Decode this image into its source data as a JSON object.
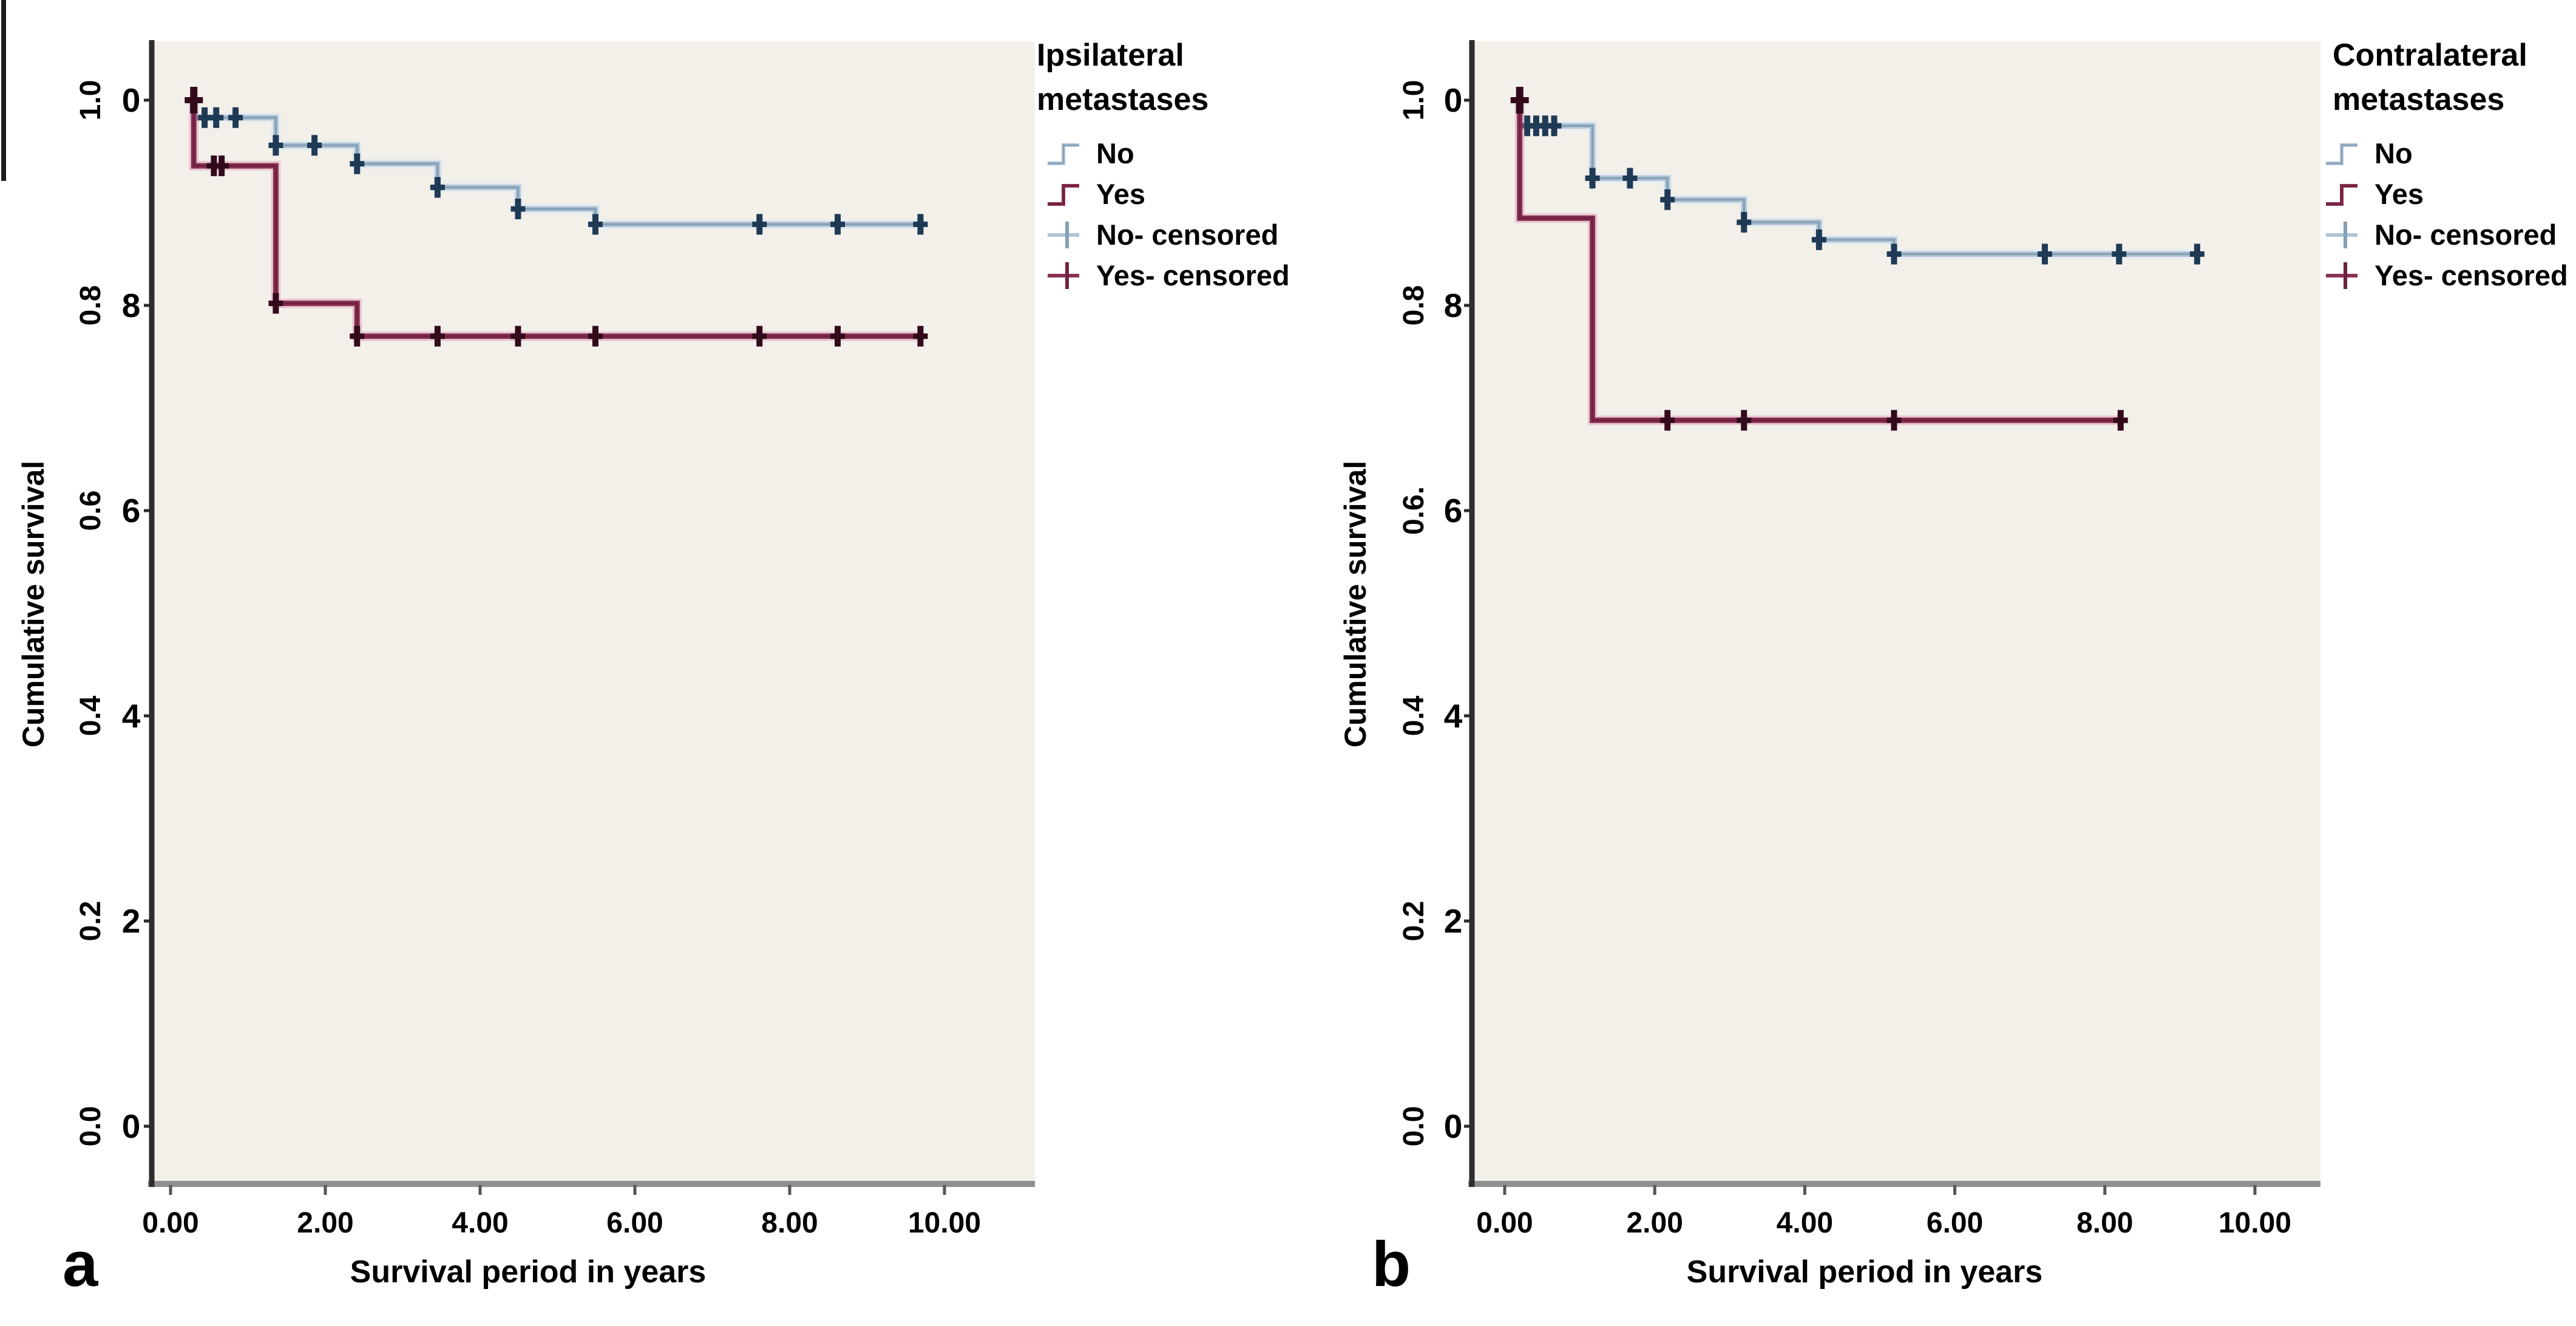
{
  "figure_background": "#ffffff",
  "plot_background": "#f3f0ea",
  "axis_color": "#2d2d2d",
  "baseline_color": "#8f8f8f",
  "chart_data": [
    {
      "type": "line",
      "subtype": "kaplan-meier-step",
      "panel_label": "a",
      "legend_title": [
        "Ipsilateral",
        "metastases"
      ],
      "xlabel": "Survival period in years",
      "ylabel": "Cumulative survival",
      "xticks": [
        "0.00",
        "2.00",
        "4.00",
        "6.00",
        "8.00",
        "10.00"
      ],
      "xtick_values": [
        0,
        2,
        4,
        6,
        8,
        10
      ],
      "yticks_rotated": [
        "1.0",
        "0.8",
        "0.6",
        "0.4",
        "0.2",
        "0.0"
      ],
      "yticks_digits": [
        "0",
        "8",
        "6",
        "4",
        "2",
        "0"
      ],
      "ytick_values": [
        1.0,
        0.8,
        0.6,
        0.4,
        0.2,
        0.0
      ],
      "xlim": [
        0,
        11.2
      ],
      "ylim": [
        0,
        1.0
      ],
      "grid": false,
      "legend_position": "right",
      "legend_items": [
        {
          "label": "No",
          "symbol": "step",
          "series": 0
        },
        {
          "label": "Yes",
          "symbol": "step",
          "series": 1
        },
        {
          "label": "No- censored",
          "symbol": "censor",
          "series": 0
        },
        {
          "label": "Yes- censored",
          "symbol": "censor",
          "series": 1
        }
      ],
      "series": [
        {
          "name": "No",
          "line_color": "#b0c4d4",
          "core_color": "#85a0b6",
          "marker_color": "#1f3a55",
          "glow_color": "rgba(220,232,242,0.6)",
          "steps": [
            [
              0.3,
              1.0
            ],
            [
              0.3,
              0.983
            ],
            [
              1.36,
              0.956
            ],
            [
              2.41,
              0.938
            ],
            [
              3.45,
              0.915
            ],
            [
              4.49,
              0.894
            ],
            [
              5.49,
              0.879
            ]
          ],
          "end_x": 9.69,
          "censored": [
            [
              0.44,
              0.983
            ],
            [
              0.59,
              0.983
            ],
            [
              0.84,
              0.983
            ],
            [
              1.36,
              0.956
            ],
            [
              1.86,
              0.956
            ],
            [
              2.41,
              0.938
            ],
            [
              3.45,
              0.915
            ],
            [
              4.49,
              0.894
            ],
            [
              5.49,
              0.879
            ],
            [
              7.61,
              0.879
            ],
            [
              8.62,
              0.879
            ],
            [
              9.69,
              0.879
            ]
          ]
        },
        {
          "name": "Yes",
          "line_color": "#8a3053",
          "core_color": "#6f2240",
          "marker_color": "#330a1c",
          "glow_color": "rgba(214,130,165,0.35)",
          "steps": [
            [
              0.3,
              1.0
            ],
            [
              0.3,
              0.936
            ],
            [
              1.36,
              0.802
            ],
            [
              2.41,
              0.77
            ]
          ],
          "end_x": 9.69,
          "censored": [
            [
              0.3,
              1.0
            ],
            [
              0.56,
              0.936
            ],
            [
              0.66,
              0.936
            ],
            [
              1.36,
              0.802
            ],
            [
              2.41,
              0.77
            ],
            [
              3.45,
              0.77
            ],
            [
              4.49,
              0.77
            ],
            [
              5.49,
              0.77
            ],
            [
              7.61,
              0.77
            ],
            [
              8.62,
              0.77
            ],
            [
              9.69,
              0.77
            ]
          ]
        }
      ]
    },
    {
      "type": "line",
      "subtype": "kaplan-meier-step",
      "panel_label": "b",
      "legend_title": [
        "Contralateral",
        "metastases"
      ],
      "xlabel": "Survival period in years",
      "ylabel": "Cumulative survival",
      "xticks": [
        "0.00",
        "2.00",
        "4.00",
        "6.00",
        "8.00",
        "10.00"
      ],
      "xtick_values": [
        0,
        2,
        4,
        6,
        8,
        10
      ],
      "yticks_rotated": [
        "1.0",
        "0.8",
        "0.6.",
        "0.4",
        "0.2",
        "0.0"
      ],
      "yticks_digits": [
        "0",
        "8",
        "6",
        "4",
        "2",
        "0"
      ],
      "ytick_values": [
        1.0,
        0.8,
        0.6,
        0.4,
        0.2,
        0.0
      ],
      "xlim": [
        0,
        11.2
      ],
      "ylim": [
        0,
        1.0
      ],
      "grid": false,
      "legend_position": "right",
      "legend_items": [
        {
          "label": "No",
          "symbol": "step",
          "series": 0
        },
        {
          "label": "Yes",
          "symbol": "step",
          "series": 1
        },
        {
          "label": "No- censored",
          "symbol": "censor",
          "series": 0
        },
        {
          "label": "Yes- censored",
          "symbol": "censor",
          "series": 1
        }
      ],
      "series": [
        {
          "name": "No",
          "line_color": "#b0c4d4",
          "core_color": "#85a0b6",
          "marker_color": "#1f3a55",
          "glow_color": "rgba(220,232,242,0.6)",
          "steps": [
            [
              0.2,
              1.0
            ],
            [
              0.2,
              0.975
            ],
            [
              1.17,
              0.924
            ],
            [
              2.17,
              0.903
            ],
            [
              3.19,
              0.881
            ],
            [
              4.19,
              0.864
            ],
            [
              5.19,
              0.85
            ]
          ],
          "end_x": 9.23,
          "censored": [
            [
              0.3,
              0.975
            ],
            [
              0.42,
              0.975
            ],
            [
              0.54,
              0.975
            ],
            [
              0.66,
              0.975
            ],
            [
              1.17,
              0.924
            ],
            [
              1.67,
              0.924
            ],
            [
              2.17,
              0.903
            ],
            [
              3.19,
              0.881
            ],
            [
              4.19,
              0.864
            ],
            [
              5.19,
              0.85
            ],
            [
              7.2,
              0.85
            ],
            [
              8.19,
              0.85
            ],
            [
              9.23,
              0.85
            ]
          ]
        },
        {
          "name": "Yes",
          "line_color": "#8a3053",
          "core_color": "#6f2240",
          "marker_color": "#330a1c",
          "glow_color": "rgba(214,130,165,0.35)",
          "steps": [
            [
              0.2,
              1.0
            ],
            [
              0.2,
              0.885
            ],
            [
              1.17,
              0.688
            ]
          ],
          "end_x": 8.21,
          "censored": [
            [
              0.2,
              1.0
            ],
            [
              2.17,
              0.688
            ],
            [
              3.19,
              0.688
            ],
            [
              5.19,
              0.688
            ],
            [
              8.21,
              0.688
            ]
          ]
        }
      ]
    }
  ]
}
